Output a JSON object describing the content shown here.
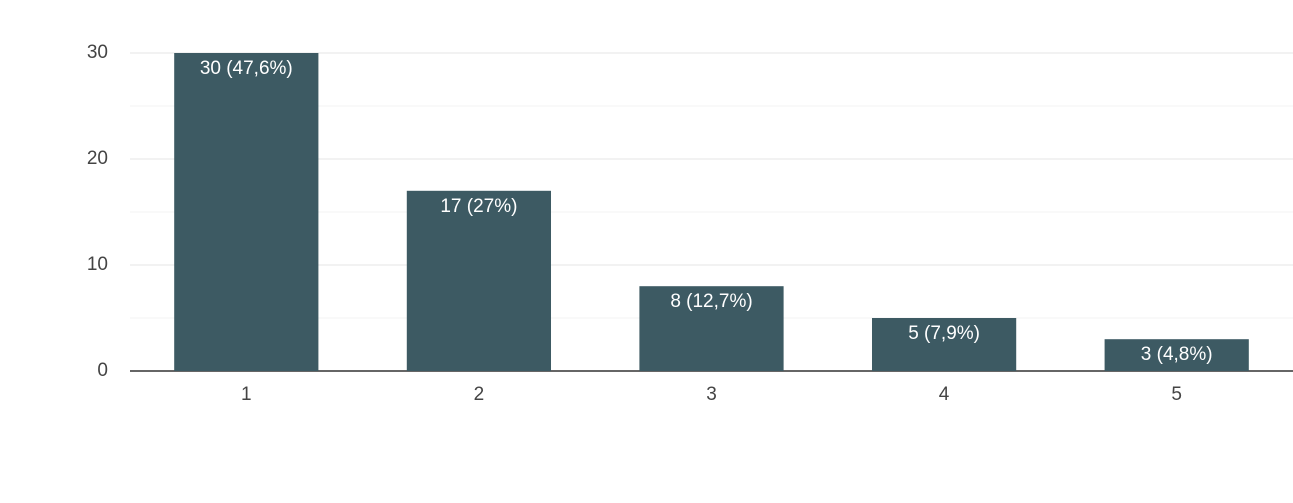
{
  "chart_data": {
    "type": "bar",
    "categories": [
      "1",
      "2",
      "3",
      "4",
      "5"
    ],
    "values": [
      30,
      17,
      8,
      5,
      3
    ],
    "value_labels": [
      "30 (47,6%)",
      "17 (27%)",
      "8 (12,7%)",
      "5 (7,9%)",
      "3 (4,8%)"
    ],
    "color": "#3d5a63",
    "ylim": [
      0,
      30
    ],
    "yticks": [
      0,
      10,
      20,
      30
    ],
    "minor_yticks": [
      5,
      15,
      25
    ],
    "grid": true
  }
}
